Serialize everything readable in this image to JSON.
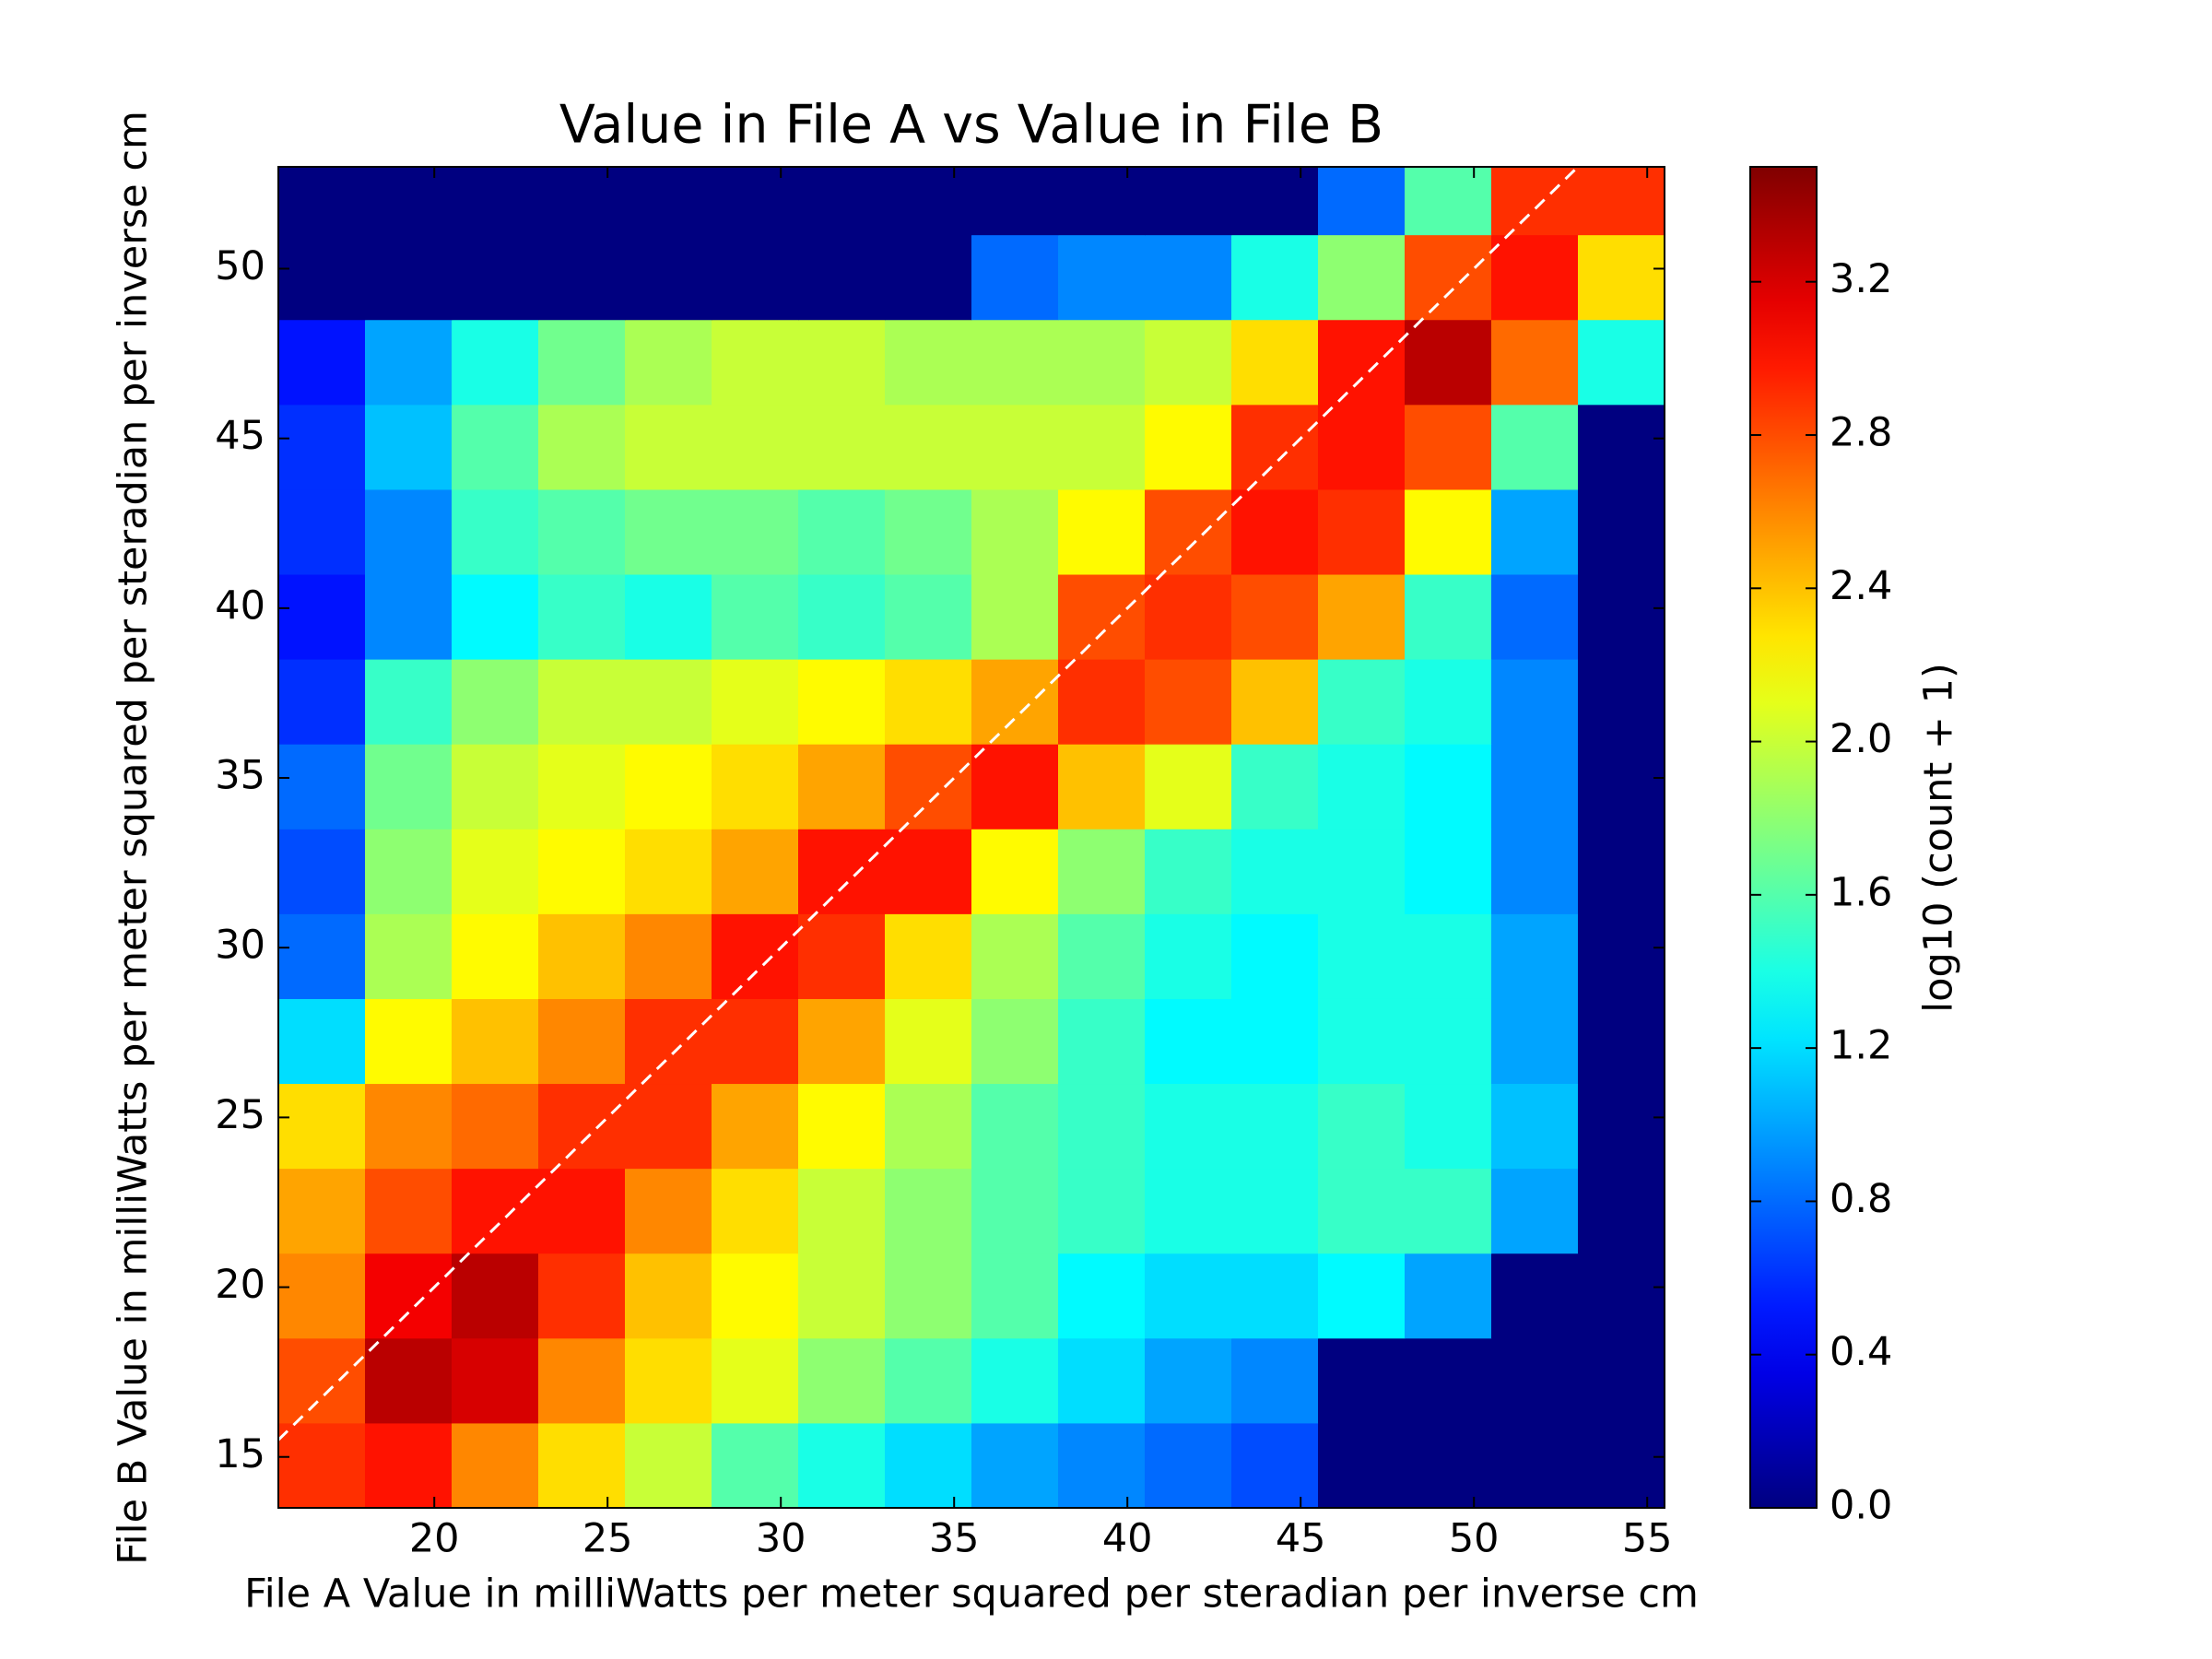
{
  "chart_data": {
    "type": "hexbin",
    "title": "Value in File A vs Value in File B",
    "x_label": "File A Value in milliWatts per meter squared per steradian per inverse cm",
    "y_label": "File B Value in milliWatts per meter squared per steradian per inverse cm",
    "colorbar_label": "log10 (count + 1)",
    "colormap": "jet",
    "identity_line": true,
    "xlim": [
      15.5,
      55.5
    ],
    "ylim": [
      13.5,
      53
    ],
    "xticks": [
      20,
      25,
      30,
      35,
      40,
      45,
      50,
      55
    ],
    "yticks": [
      15,
      20,
      25,
      30,
      35,
      40,
      45,
      50
    ],
    "clim": [
      0,
      3.5
    ],
    "cticks": [
      {
        "value": 0,
        "label": "0.0"
      },
      0.4,
      0.8,
      1.2,
      1.6,
      {
        "value": 2,
        "label": "2.0"
      },
      2.4,
      2.8,
      3.2
    ],
    "x": [
      16.75,
      19.25,
      21.75,
      24.25,
      26.75,
      29.25,
      31.75,
      34.25,
      36.75,
      39.25,
      41.75,
      44.25,
      46.75,
      49.25,
      51.75,
      54.25
    ],
    "y": [
      14.75,
      17.25,
      19.75,
      22.25,
      24.75,
      27.25,
      29.75,
      32.25,
      34.75,
      37.25,
      39.75,
      42.25,
      44.75,
      47.25,
      49.75,
      52.25
    ],
    "values": [
      [
        2.9,
        3.0,
        2.6,
        2.3,
        2.0,
        1.6,
        1.4,
        1.2,
        1.0,
        0.9,
        0.8,
        0.7,
        0,
        0,
        0,
        0
      ],
      [
        2.8,
        3.3,
        3.2,
        2.6,
        2.3,
        2.1,
        1.8,
        1.6,
        1.4,
        1.2,
        1.0,
        0.9,
        0,
        0,
        0,
        0
      ],
      [
        2.6,
        3.1,
        3.3,
        2.9,
        2.4,
        2.2,
        2.0,
        1.8,
        1.6,
        1.3,
        1.2,
        1.2,
        1.3,
        1.0,
        0,
        0
      ],
      [
        2.5,
        2.8,
        3.0,
        3.0,
        2.6,
        2.3,
        2.0,
        1.8,
        1.6,
        1.5,
        1.4,
        1.4,
        1.5,
        1.5,
        1.0,
        0
      ],
      [
        2.3,
        2.6,
        2.7,
        2.9,
        2.9,
        2.5,
        2.2,
        1.9,
        1.6,
        1.5,
        1.4,
        1.4,
        1.5,
        1.4,
        1.1,
        0
      ],
      [
        1.2,
        2.2,
        2.4,
        2.6,
        2.9,
        2.9,
        2.5,
        2.1,
        1.8,
        1.5,
        1.3,
        1.3,
        1.4,
        1.4,
        1.0,
        0
      ],
      [
        0.8,
        1.9,
        2.2,
        2.4,
        2.6,
        3.0,
        2.9,
        2.3,
        1.9,
        1.6,
        1.4,
        1.3,
        1.4,
        1.4,
        1.0,
        0
      ],
      [
        0.7,
        1.8,
        2.1,
        2.2,
        2.3,
        2.5,
        3.0,
        3.0,
        2.2,
        1.8,
        1.5,
        1.4,
        1.4,
        1.3,
        0.9,
        0
      ],
      [
        0.8,
        1.7,
        2.0,
        2.1,
        2.2,
        2.3,
        2.5,
        2.8,
        3.0,
        2.4,
        2.1,
        1.5,
        1.4,
        1.3,
        0.9,
        0
      ],
      [
        0.6,
        1.5,
        1.8,
        2.0,
        2.0,
        2.1,
        2.2,
        2.3,
        2.5,
        2.9,
        2.8,
        2.4,
        1.5,
        1.4,
        0.9,
        0
      ],
      [
        0.5,
        0.9,
        1.3,
        1.5,
        1.4,
        1.6,
        1.5,
        1.6,
        1.9,
        2.8,
        2.9,
        2.8,
        2.5,
        1.5,
        0.8,
        0
      ],
      [
        0.6,
        0.9,
        1.5,
        1.6,
        1.7,
        1.7,
        1.6,
        1.7,
        1.9,
        2.2,
        2.8,
        3.0,
        2.9,
        2.2,
        1.0,
        0
      ],
      [
        0.6,
        1.1,
        1.6,
        1.9,
        2.0,
        2.0,
        2.0,
        2.0,
        2.0,
        2.0,
        2.2,
        2.9,
        3.0,
        2.8,
        1.6,
        0
      ],
      [
        0.5,
        1.0,
        1.4,
        1.7,
        1.9,
        2.0,
        2.0,
        1.9,
        1.9,
        1.9,
        2.0,
        2.3,
        3.0,
        3.3,
        2.7,
        1.4
      ],
      [
        0,
        0,
        0,
        0,
        0,
        0,
        0,
        0,
        0.8,
        0.9,
        0.9,
        1.4,
        1.8,
        2.8,
        3.0,
        2.3
      ],
      [
        0,
        0,
        0,
        0,
        0,
        0,
        0,
        0,
        0,
        0,
        0,
        0,
        0.8,
        1.6,
        2.9,
        2.9
      ]
    ]
  }
}
